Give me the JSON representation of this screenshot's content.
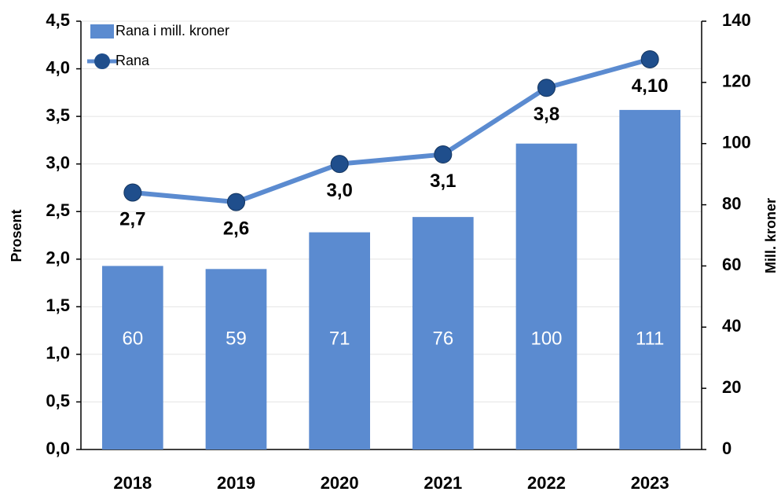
{
  "chart_data": {
    "type": "combo",
    "categories": [
      "2018",
      "2019",
      "2020",
      "2021",
      "2022",
      "2023"
    ],
    "series": [
      {
        "name": "Rana i mill. kroner",
        "type": "bar",
        "axis": "y2",
        "color": "#5b8bd0",
        "values": [
          60,
          59,
          71,
          76,
          100,
          111
        ]
      },
      {
        "name": "Rana",
        "type": "line",
        "axis": "y",
        "color": "#5b8bd0",
        "marker_color": "#1f4e8c",
        "values": [
          2.7,
          2.6,
          3.0,
          3.1,
          3.8,
          4.1
        ],
        "value_labels": [
          "2,7",
          "2,6",
          "3,0",
          "3,1",
          "3,8",
          "4,10"
        ]
      }
    ],
    "ylabel": "Prosent",
    "y2label": "Mill. kroner",
    "ylim": [
      0,
      4.5
    ],
    "yticks": [
      {
        "value": 0,
        "label": "0,0"
      },
      {
        "value": 0.5,
        "label": "0,5"
      },
      {
        "value": 1,
        "label": "1,0"
      },
      {
        "value": 1.5,
        "label": "1,5"
      },
      {
        "value": 2,
        "label": "2,0"
      },
      {
        "value": 2.5,
        "label": "2,5"
      },
      {
        "value": 3,
        "label": "3,0"
      },
      {
        "value": 3.5,
        "label": "3,5"
      },
      {
        "value": 4,
        "label": "4,0"
      },
      {
        "value": 4.5,
        "label": "4,5"
      }
    ],
    "y2lim": [
      0,
      140
    ],
    "y2ticks": [
      0,
      20,
      40,
      60,
      80,
      100,
      120,
      140
    ],
    "grid": true,
    "legend": "top-left"
  }
}
